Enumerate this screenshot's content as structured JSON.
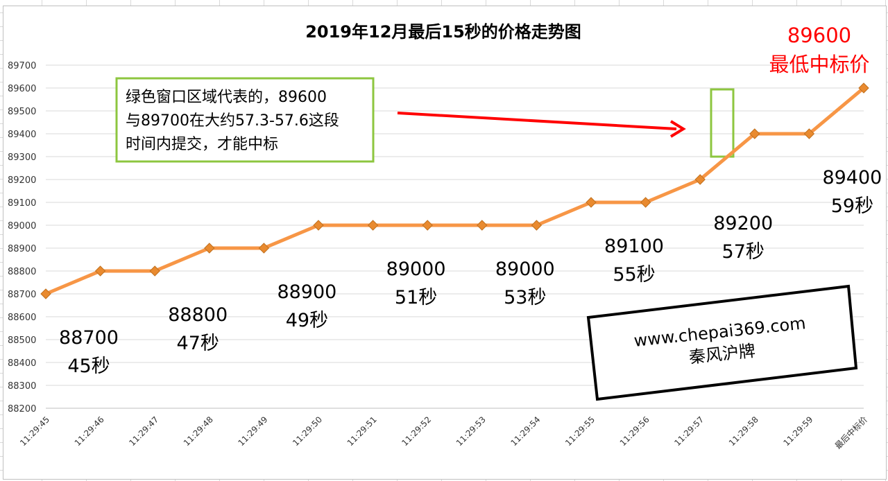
{
  "chart_data": {
    "type": "line",
    "title": "2019年12月最后15秒的价格走势图",
    "categories": [
      "11:29:45",
      "11:29:46",
      "11:29:47",
      "11:29:48",
      "11:29:49",
      "11:29:50",
      "11:29:51",
      "11:29:52",
      "11:29:53",
      "11:29:54",
      "11:29:55",
      "11:29:56",
      "11:29:57",
      "11:29:58",
      "11:29:59",
      "最后中标价"
    ],
    "values": [
      88700,
      88800,
      88800,
      88900,
      88900,
      89000,
      89000,
      89000,
      89000,
      89000,
      89100,
      89100,
      89200,
      89400,
      89400,
      89600
    ],
    "ylim": [
      88200,
      89700
    ],
    "yticks": [
      88200,
      88300,
      88400,
      88500,
      88600,
      88700,
      88800,
      88900,
      89000,
      89100,
      89200,
      89300,
      89400,
      89500,
      89600,
      89700
    ],
    "grid": true,
    "series_color": "#f79646",
    "marker_color": "#e98a2f",
    "point_labels": [
      {
        "index": 0,
        "value": "88700",
        "time": "45秒"
      },
      {
        "index": 2,
        "value": "88800",
        "time": "47秒"
      },
      {
        "index": 4,
        "value": "88900",
        "time": "49秒"
      },
      {
        "index": 6,
        "value": "89000",
        "time": "51秒"
      },
      {
        "index": 8,
        "value": "89000",
        "time": "53秒"
      },
      {
        "index": 10,
        "value": "89100",
        "time": "55秒"
      },
      {
        "index": 12,
        "value": "89200",
        "time": "57秒"
      },
      {
        "index": 14,
        "value": "89400",
        "time": "59秒"
      }
    ],
    "final_label": {
      "value": "89600",
      "text": "最低中标价",
      "color": "#ff0000"
    },
    "annotation": {
      "lines": [
        "绿色窗口区域代表的，89600",
        "与89700在大约57.3-57.6这段",
        "时间内提交，才能中标"
      ],
      "border_color": "#8dc63f",
      "arrow_color": "#ff0000"
    },
    "window_box_color": "#8dc63f",
    "watermark": {
      "lines": [
        "www.chepai369.com",
        "秦风沪牌"
      ]
    }
  }
}
